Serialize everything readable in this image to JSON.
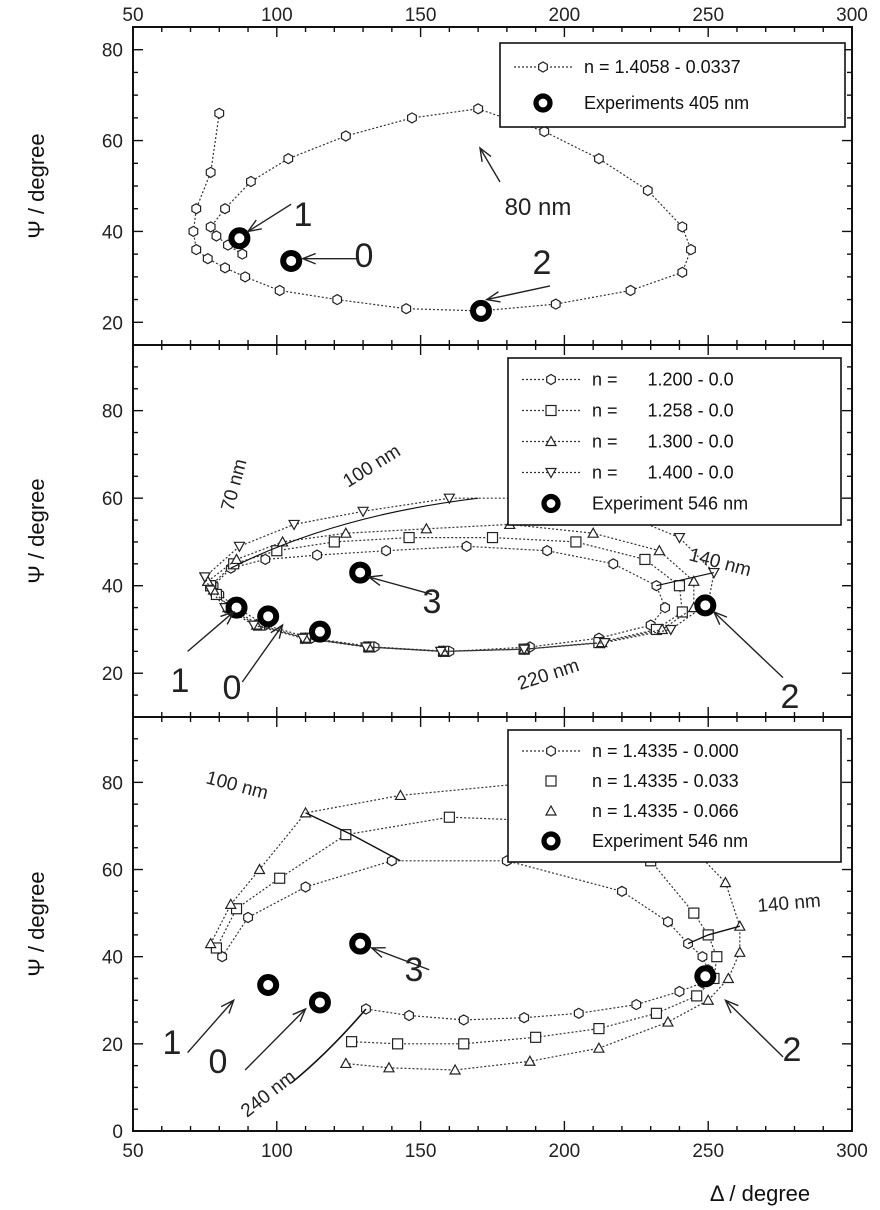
{
  "chart_data": [
    {
      "type": "line",
      "panel": "top",
      "xlim": [
        50,
        300
      ],
      "ylim": [
        15,
        85
      ],
      "xticks": [
        50,
        100,
        150,
        200,
        250,
        300
      ],
      "yticks": [
        20,
        40,
        60,
        80
      ],
      "top_axis_labels": true,
      "bottom_axis_labels": false,
      "ylabel": "Ψ / degree",
      "xlabel": "",
      "legend": [
        "n = 1.4058 - 0.0337",
        "Experiments 405 nm"
      ],
      "legend_position": "top-right",
      "series": [
        {
          "name": "n = 1.4058 - 0.0337",
          "marker": "hexagon",
          "x": [
            80,
            77,
            72,
            71,
            72,
            76,
            82,
            89,
            101,
            121,
            145,
            171,
            197,
            223,
            241,
            244,
            241,
            229,
            212,
            193,
            170,
            147,
            124,
            104,
            91,
            82,
            77,
            79,
            83,
            88
          ],
          "y": [
            66,
            53,
            45,
            40,
            36,
            34,
            32,
            30,
            27,
            25,
            23,
            22.5,
            24,
            27,
            31,
            36,
            41,
            49,
            56,
            62,
            67,
            65,
            61,
            56,
            51,
            45,
            41,
            39,
            37,
            35
          ]
        }
      ],
      "experiments": [
        {
          "label": "Experiments 405 nm",
          "x": [
            87,
            105,
            171
          ],
          "y": [
            38.5,
            33.5,
            22.5
          ]
        }
      ],
      "annotations": [
        {
          "text": "1",
          "x": 90,
          "y": 40,
          "tx": 105,
          "ty": 46
        },
        {
          "text": "0",
          "x": 109,
          "y": 34,
          "tx": 128,
          "ty": 34
        },
        {
          "text": "2",
          "x": 173,
          "y": 25,
          "tx": 195,
          "ty": 28
        },
        {
          "text": "80 nm",
          "x": 173,
          "y": 63,
          "tx": 192,
          "ty": 52
        }
      ]
    },
    {
      "type": "line",
      "panel": "middle",
      "xlim": [
        50,
        300
      ],
      "ylim": [
        10,
        95
      ],
      "yticks": [
        20,
        40,
        60,
        80
      ],
      "top_axis_labels": false,
      "bottom_axis_labels": false,
      "ylabel": "Ψ / degree",
      "xlabel": "",
      "legend": [
        "n =      1.200 - 0.0",
        "n =      1.258 - 0.0",
        "n =      1.300 - 0.0",
        "n =      1.400 - 0.0",
        "Experiment 546 nm"
      ],
      "legend_position": "top-right",
      "series": [
        {
          "name": "n =      1.200 - 0.0",
          "marker": "hexagon",
          "x": [
            78,
            84,
            96,
            114,
            138,
            166,
            194,
            217,
            232,
            235,
            230,
            212,
            188,
            160,
            134,
            112,
            96,
            86,
            80,
            78
          ],
          "y": [
            40,
            44,
            46,
            47,
            48,
            49,
            48,
            45,
            40,
            35,
            31,
            28,
            26,
            25,
            26,
            28,
            31,
            35,
            38,
            40
          ]
        },
        {
          "name": "n =      1.258 - 0.0",
          "marker": "square",
          "x": [
            77,
            85,
            100,
            120,
            146,
            175,
            204,
            228,
            240,
            241,
            232,
            212,
            186,
            158,
            132,
            110,
            94,
            84,
            79,
            77
          ],
          "y": [
            40,
            45,
            48,
            50,
            51,
            51,
            50,
            46,
            40,
            34,
            30,
            27,
            25.5,
            25,
            26,
            28,
            31,
            35,
            38,
            40
          ]
        },
        {
          "name": "n =      1.300 - 0.0",
          "marker": "triangle-up",
          "x": [
            76,
            86,
            102,
            124,
            152,
            181,
            210,
            233,
            245,
            245,
            234,
            213,
            186,
            158,
            132,
            110,
            93,
            83,
            78,
            76
          ],
          "y": [
            41,
            46,
            50,
            52,
            53,
            54,
            52,
            48,
            41,
            35,
            30,
            27,
            25.5,
            25,
            26,
            28,
            31,
            35,
            39,
            41
          ]
        },
        {
          "name": "n =      1.400 - 0.0",
          "marker": "triangle-down",
          "x": [
            75,
            87,
            106,
            130,
            160,
            190,
            218,
            240,
            252,
            250,
            237,
            214,
            186,
            157,
            131,
            109,
            92,
            82,
            77,
            75
          ],
          "y": [
            42,
            49,
            54,
            57,
            60,
            60,
            57,
            51,
            43,
            36,
            30,
            27,
            25.5,
            25,
            26,
            28,
            31,
            35,
            39,
            42
          ]
        }
      ],
      "experiments": [
        {
          "label": "Experiment 546 nm",
          "x": [
            115,
            97,
            86,
            129,
            249
          ],
          "y": [
            29.5,
            33,
            35,
            43,
            35.5
          ]
        }
      ],
      "annotations": [
        {
          "text": "1",
          "x": 85,
          "y": 34,
          "tx": 69,
          "ty": 25
        },
        {
          "text": "0",
          "x": 102,
          "y": 31,
          "tx": 88,
          "ty": 18
        },
        {
          "text": "3",
          "x": 132,
          "y": 42,
          "tx": 154,
          "ty": 38
        },
        {
          "text": "2",
          "x": 252,
          "y": 34,
          "tx": 276,
          "ty": 19
        },
        {
          "text": "70 nm"
        },
        {
          "text": "100 nm"
        },
        {
          "text": "140 nm"
        },
        {
          "text": "220 nm"
        }
      ]
    },
    {
      "type": "line",
      "panel": "bottom",
      "xlim": [
        50,
        300
      ],
      "ylim": [
        0,
        95
      ],
      "xticks": [
        50,
        100,
        150,
        200,
        250,
        300
      ],
      "yticks": [
        0,
        20,
        40,
        60,
        80
      ],
      "top_axis_labels": false,
      "bottom_axis_labels": true,
      "ylabel": "Ψ / degree",
      "xlabel": "Δ / degree",
      "legend": [
        "n = 1.4335 - 0.000",
        "n = 1.4335 - 0.033",
        "n = 1.4335 - 0.066",
        "Experiment 546 nm"
      ],
      "legend_position": "top-right",
      "series": [
        {
          "name": "n = 1.4335 - 0.000",
          "marker": "hexagon",
          "x": [
            81,
            90,
            110,
            140,
            180,
            220,
            236,
            243,
            248,
            250,
            248,
            240,
            225,
            205,
            186,
            165,
            146,
            131
          ],
          "y": [
            40,
            49,
            56,
            62,
            62,
            55,
            48,
            43,
            40,
            37,
            34,
            32,
            29,
            27,
            26,
            25.5,
            26.5,
            28
          ]
        },
        {
          "name": "n = 1.4335 - 0.033",
          "marker": "square",
          "x": [
            79,
            86,
            101,
            124,
            160,
            200,
            230,
            245,
            250,
            253,
            252,
            246,
            232,
            212,
            190,
            165,
            142,
            126
          ],
          "y": [
            42,
            51,
            58,
            68,
            72,
            71,
            62,
            50,
            45,
            40,
            35,
            31,
            27,
            23.5,
            21.5,
            20,
            20,
            20.5
          ]
        },
        {
          "name": "n = 1.4335 - 0.066",
          "marker": "triangle-up",
          "x": [
            77,
            84,
            94,
            110,
            143,
            190,
            230,
            256,
            261,
            261,
            257,
            250,
            236,
            212,
            188,
            162,
            139,
            124
          ],
          "y": [
            43,
            52,
            60,
            73,
            77,
            80,
            75,
            57,
            47,
            41,
            35,
            30,
            25,
            19,
            16,
            14,
            14.5,
            15.5
          ]
        }
      ],
      "experiments": [
        {
          "label": "Experiment 546 nm",
          "x": [
            97,
            115,
            129,
            249
          ],
          "y": [
            33.5,
            29.5,
            43,
            35.5
          ]
        }
      ],
      "annotations": [
        {
          "text": "1",
          "x": 85,
          "y": 30,
          "tx": 69,
          "ty": 18
        },
        {
          "text": "0",
          "x": 110,
          "y": 28,
          "tx": 89,
          "ty": 14
        },
        {
          "text": "3",
          "x": 133,
          "y": 42,
          "tx": 153,
          "ty": 37
        },
        {
          "text": "2",
          "x": 256,
          "y": 30,
          "tx": 276,
          "ty": 17
        },
        {
          "text": "100 nm"
        },
        {
          "text": "140 nm"
        },
        {
          "text": "240 nm"
        }
      ]
    }
  ]
}
